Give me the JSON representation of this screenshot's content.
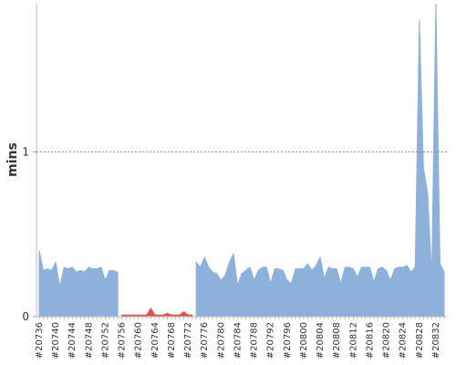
{
  "chart_data": {
    "type": "area",
    "y_label": "mins",
    "categories": [
      "#20736",
      null,
      null,
      null,
      "#20740",
      null,
      null,
      null,
      "#20744",
      null,
      null,
      null,
      "#20748",
      null,
      null,
      null,
      "#20752",
      null,
      null,
      null,
      "#20756",
      null,
      null,
      null,
      "#20760",
      null,
      null,
      null,
      "#20764",
      null,
      null,
      null,
      "#20768",
      null,
      null,
      null,
      "#20772",
      null,
      null,
      null,
      "#20776",
      null,
      null,
      null,
      "#20780",
      null,
      null,
      null,
      "#20784",
      null,
      null,
      null,
      "#20788",
      null,
      null,
      null,
      "#20792",
      null,
      null,
      null,
      "#20796",
      null,
      null,
      null,
      "#20800",
      null,
      null,
      null,
      "#20804",
      null,
      null,
      null,
      "#20808",
      null,
      null,
      null,
      "#20812",
      null,
      null,
      null,
      "#20816",
      null,
      null,
      null,
      "#20820",
      null,
      null,
      null,
      "#20824",
      null,
      null,
      null,
      "#20828",
      null,
      null,
      null,
      "#20832",
      null,
      null
    ],
    "series": [
      {
        "color": "#8eb1db",
        "values": [
          0.4,
          0.28,
          0.29,
          0.28,
          0.33,
          0.18,
          0.3,
          0.29,
          0.3,
          0.27,
          0.28,
          0.27,
          0.3,
          0.29,
          0.29,
          0.3,
          0.22,
          0.28,
          0.28,
          0.27,
          null,
          null,
          null,
          null,
          null,
          null,
          null,
          null,
          null,
          null,
          null,
          null,
          null,
          null,
          null,
          null,
          null,
          null,
          0.33,
          0.3,
          0.36,
          0.3,
          0.27,
          0.26,
          0.22,
          0.25,
          0.33,
          0.38,
          0.19,
          0.26,
          0.28,
          0.3,
          0.22,
          0.28,
          0.3,
          0.3,
          0.2,
          0.29,
          0.29,
          0.28,
          0.22,
          0.2,
          0.29,
          0.29,
          0.29,
          0.32,
          0.28,
          0.31,
          0.36,
          0.23,
          0.3,
          0.29,
          0.29,
          0.2,
          0.3,
          0.3,
          0.29,
          0.24,
          0.3,
          0.3,
          0.3,
          0.21,
          0.29,
          0.3,
          0.28,
          0.22,
          0.29,
          0.3,
          0.3,
          0.31,
          0.27,
          0.3,
          1.8,
          0.9,
          0.75,
          0.25,
          1.9,
          0.32,
          0.27
        ]
      },
      {
        "color": "#e0534f",
        "values": [
          null,
          null,
          null,
          null,
          null,
          null,
          null,
          null,
          null,
          null,
          null,
          null,
          null,
          null,
          null,
          null,
          null,
          null,
          null,
          null,
          0.01,
          0.01,
          0.01,
          0.01,
          0.01,
          0.01,
          0.01,
          0.05,
          0.01,
          0.01,
          0.01,
          0.02,
          0.01,
          0.01,
          0.01,
          0.03,
          0.01,
          0.01,
          null,
          null,
          null,
          null,
          null,
          null,
          null,
          null,
          null,
          null,
          null,
          null,
          null,
          null,
          null,
          null,
          null,
          null,
          null,
          null,
          null,
          null,
          null,
          null,
          null,
          null,
          null,
          null,
          null,
          null,
          null,
          null,
          null,
          null,
          null,
          null,
          null,
          null,
          null,
          null,
          null,
          null,
          null,
          null,
          null,
          null,
          null,
          null,
          null,
          null,
          null,
          null,
          null,
          null,
          null,
          null,
          null,
          null,
          null,
          null,
          null
        ]
      }
    ],
    "ylim": [
      0,
      1.9
    ],
    "yticks": [
      0,
      1
    ],
    "grid": true
  }
}
